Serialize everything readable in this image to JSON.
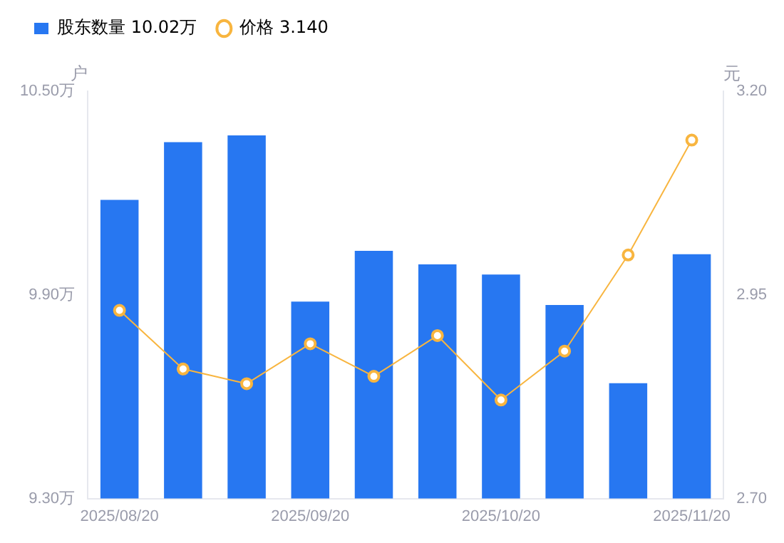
{
  "chart_data": {
    "type": "bar",
    "ylabel": "户",
    "y2label": "元",
    "categories": [
      "2025/08/20",
      null,
      null,
      "2025/09/20",
      null,
      null,
      "2025/10/20",
      null,
      null,
      "2025/11/20"
    ],
    "series": [
      {
        "name": "股东数量 10.02万",
        "color": "#2777f1",
        "values": [
          10.18,
          10.35,
          10.37,
          9.88,
          10.03,
          9.99,
          9.96,
          9.87,
          9.64,
          10.02
        ]
      },
      {
        "name": "价格 3.140",
        "type": "line",
        "axis": "y2",
        "color": "#f8b53f",
        "marker": "circle",
        "values": [
          2.931,
          2.859,
          2.841,
          2.89,
          2.85,
          2.9,
          2.821,
          2.881,
          2.999,
          3.14
        ]
      }
    ],
    "ylim": [
      9.3,
      10.5
    ],
    "yticks": [
      {
        "value": 9.3,
        "label": "9.30万"
      },
      {
        "value": 9.9,
        "label": "9.90万"
      },
      {
        "value": 10.5,
        "label": "10.50万"
      }
    ],
    "y2lim": [
      2.7,
      3.2
    ],
    "y2ticks": [
      {
        "value": 2.7,
        "label": "2.70"
      },
      {
        "value": 2.95,
        "label": "2.95"
      },
      {
        "value": 3.2,
        "label": "3.20"
      }
    ],
    "grid": false,
    "legend": "top left"
  }
}
